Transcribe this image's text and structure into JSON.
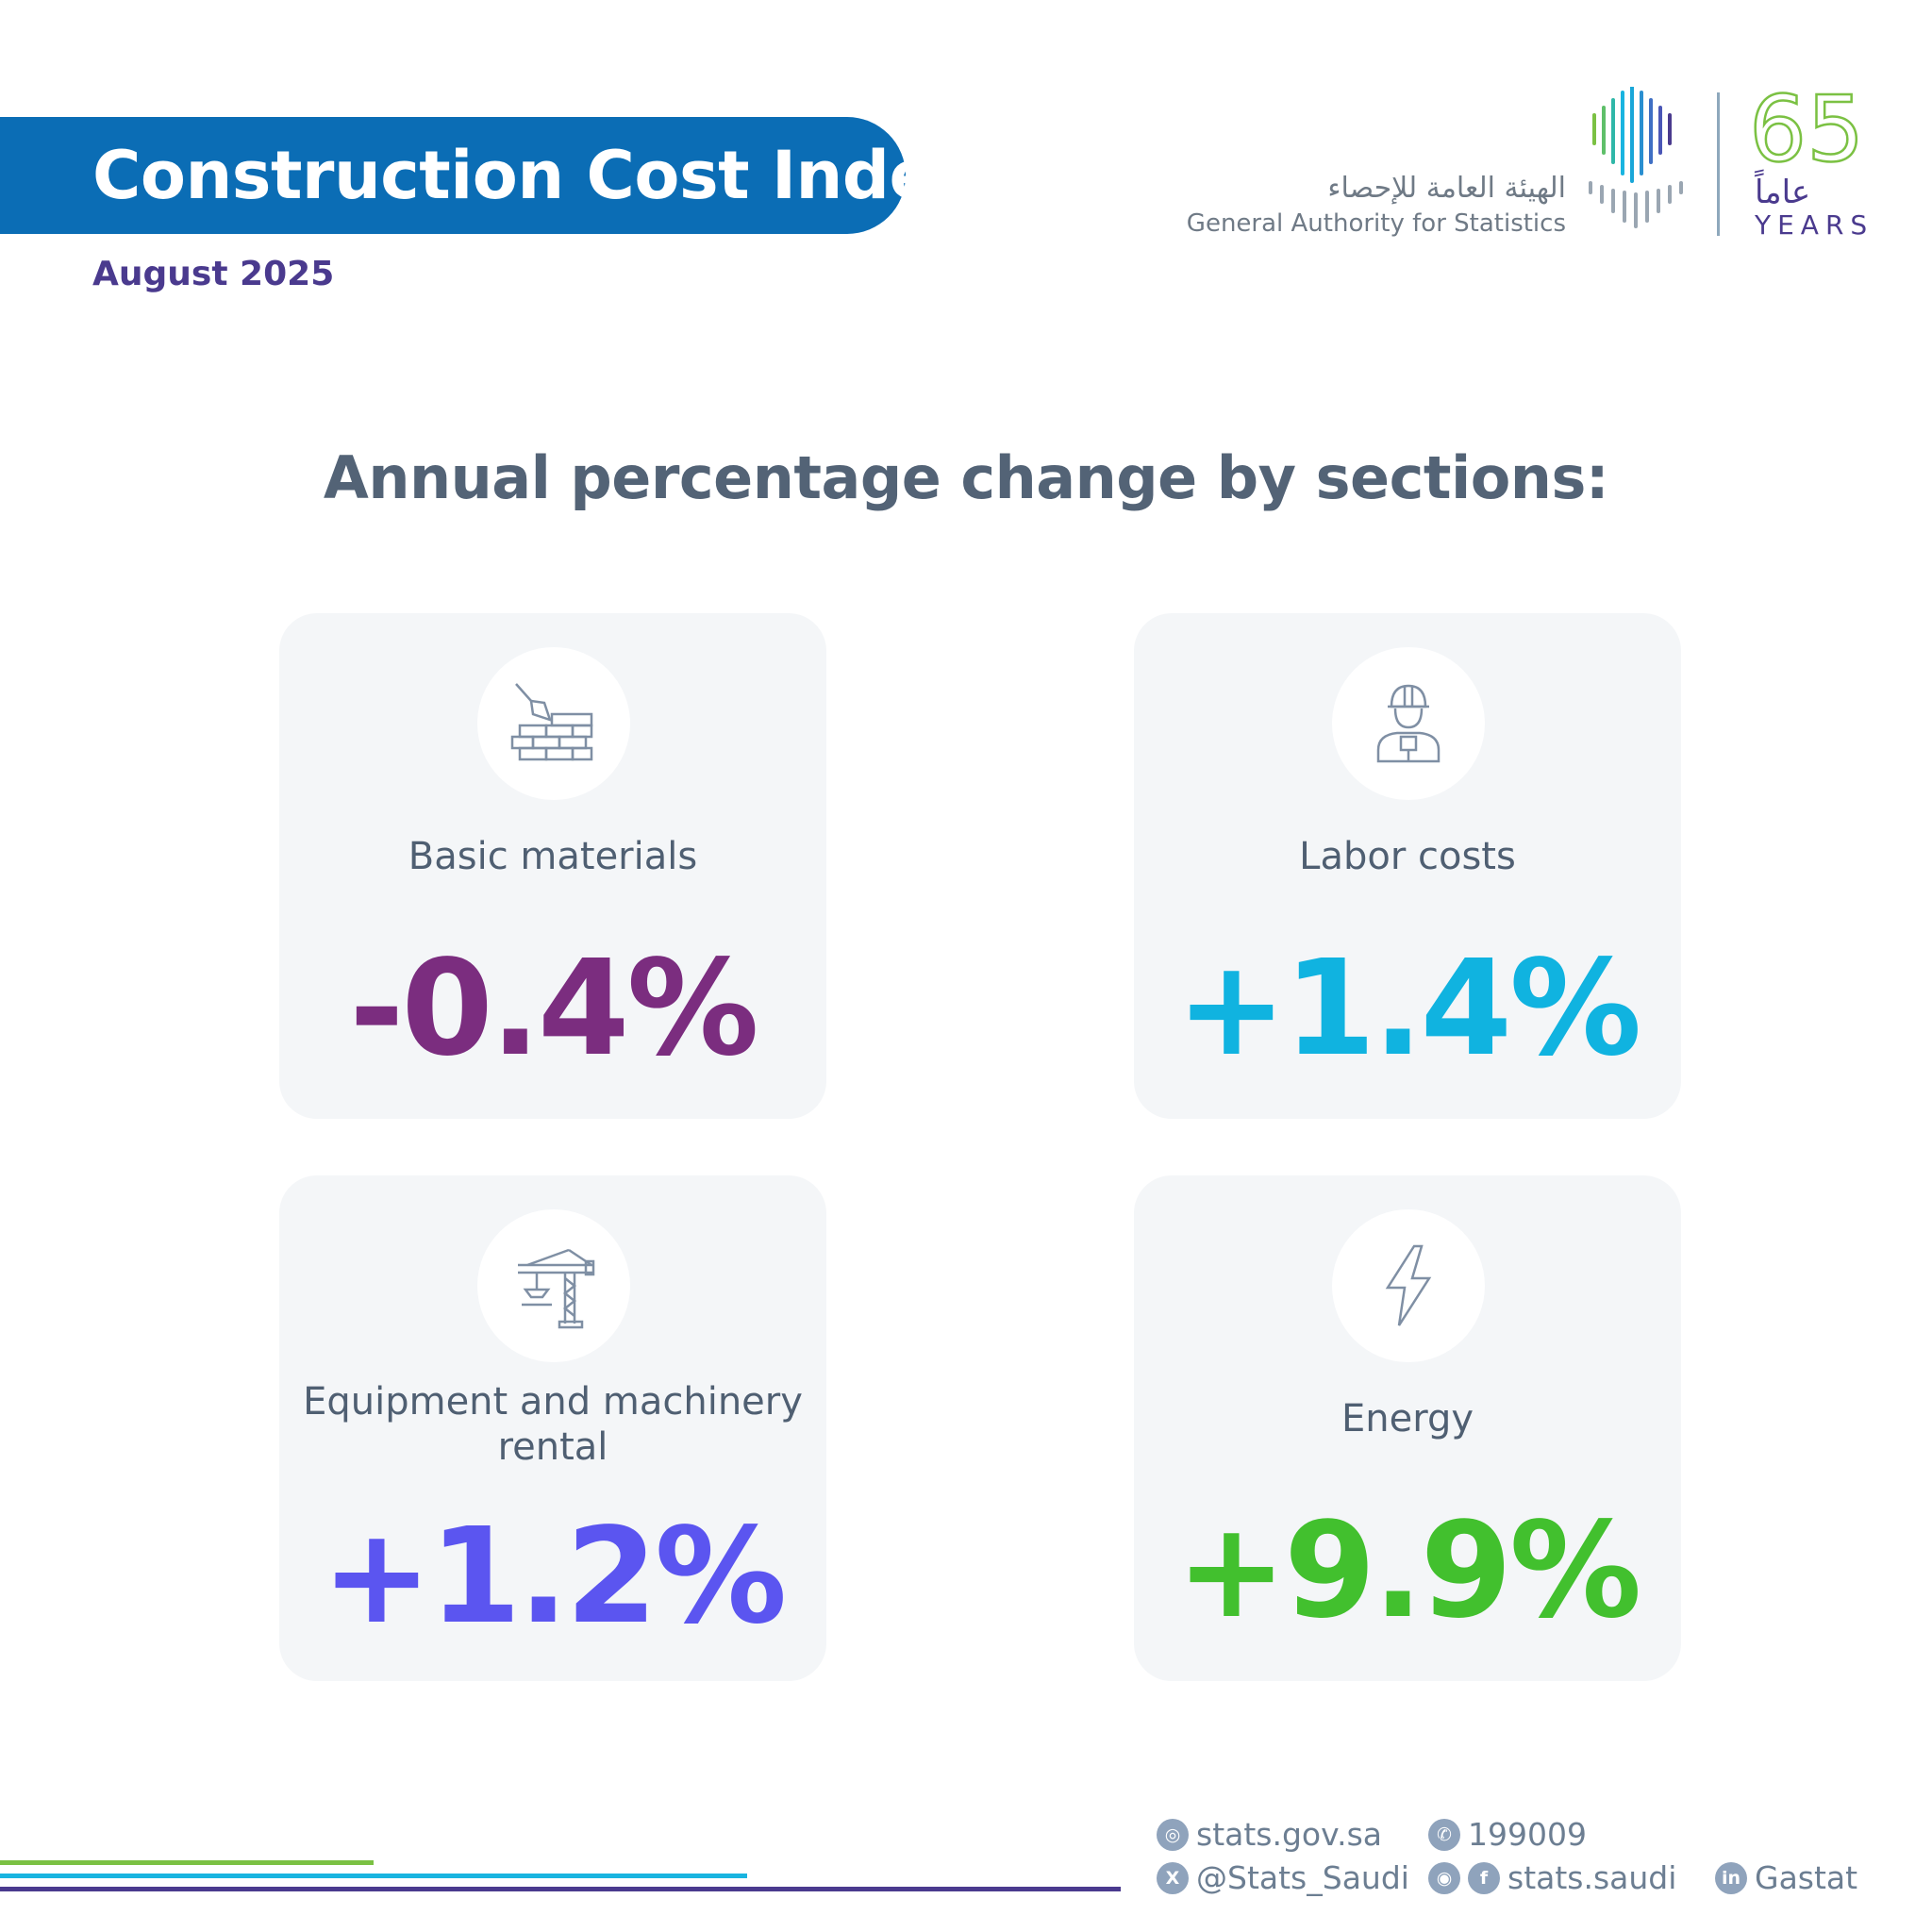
{
  "header": {
    "title": "Construction Cost Index",
    "date": "August 2025"
  },
  "logo": {
    "org_name_ar": "الهيئة العامة للإحصاء",
    "org_name_en": "General Authority for Statistics",
    "anniversary_number": "65",
    "anniversary_ar": "عاماً",
    "anniversary_en": "YEARS"
  },
  "main": {
    "heading": "Annual percentage change by sections:",
    "cards": [
      {
        "label": "Basic materials",
        "value": "-0.4%",
        "color": "#7b2d7f",
        "icon": "bricks-trowel-icon"
      },
      {
        "label": "Labor costs",
        "value": "+1.4%",
        "color": "#10b3e0",
        "icon": "worker-icon"
      },
      {
        "label_line1": "Equipment and machinery",
        "label_line2": "rental",
        "value": "+1.2%",
        "color": "#5b55f0",
        "icon": "crane-icon"
      },
      {
        "label": "Energy",
        "value": "+9.9%",
        "color": "#42c02e",
        "icon": "lightning-icon"
      }
    ]
  },
  "footer": {
    "website": "stats.gov.sa",
    "phone": "199009",
    "x_handle": "@Stats_Saudi",
    "social": "stats.saudi",
    "linkedin": "Gastat",
    "line_colors": [
      "#7bc143",
      "#19b4e0",
      "#4a3a8e"
    ]
  }
}
